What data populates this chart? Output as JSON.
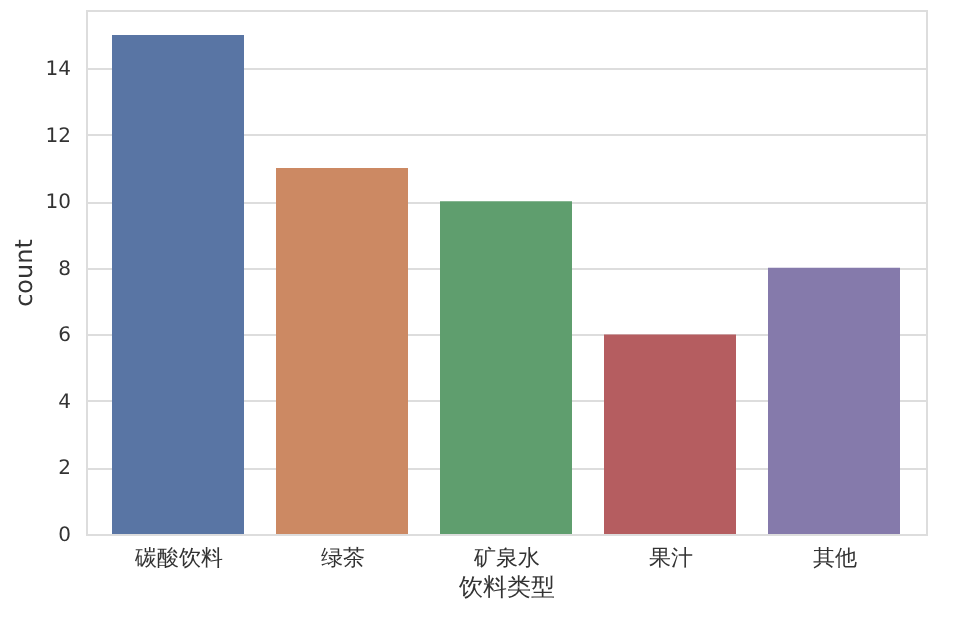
{
  "chart_data": {
    "type": "bar",
    "xlabel": "饮料类型",
    "ylabel": "count",
    "categories": [
      "碳酸饮料",
      "绿茶",
      "矿泉水",
      "果汁",
      "其他"
    ],
    "values": [
      15,
      11,
      10,
      6,
      8
    ],
    "colors": [
      "#5975a4",
      "#cc8963",
      "#5f9e6e",
      "#b55d60",
      "#857aab"
    ],
    "ylim": [
      0,
      15.75
    ],
    "yticks": [
      0,
      2,
      4,
      6,
      8,
      10,
      12,
      14
    ],
    "grid": "y"
  }
}
